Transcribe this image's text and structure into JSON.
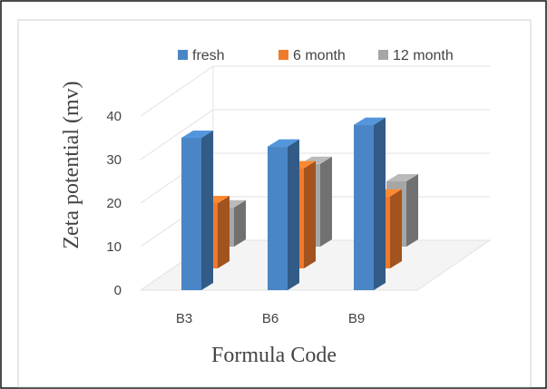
{
  "chart_data": {
    "type": "bar",
    "title": "",
    "xlabel": "Formula Code",
    "ylabel": "Zeta potential (mv)",
    "categories": [
      "B3",
      "B6",
      "B9"
    ],
    "series": [
      {
        "name": "fresh",
        "values": [
          35,
          33,
          38
        ]
      },
      {
        "name": "6 month",
        "values": [
          15,
          23,
          16.5
        ]
      },
      {
        "name": "12 month",
        "values": [
          9,
          19,
          15
        ]
      }
    ],
    "ylim": [
      0,
      40
    ],
    "yticks": [
      "0",
      "10",
      "20",
      "30",
      "40"
    ],
    "grid": true,
    "legend_position": "top",
    "three_d": true
  },
  "colors": {
    "fresh": "#4a86c6",
    "6 month": "#f07a2c",
    "12 month": "#a6a6a6"
  }
}
